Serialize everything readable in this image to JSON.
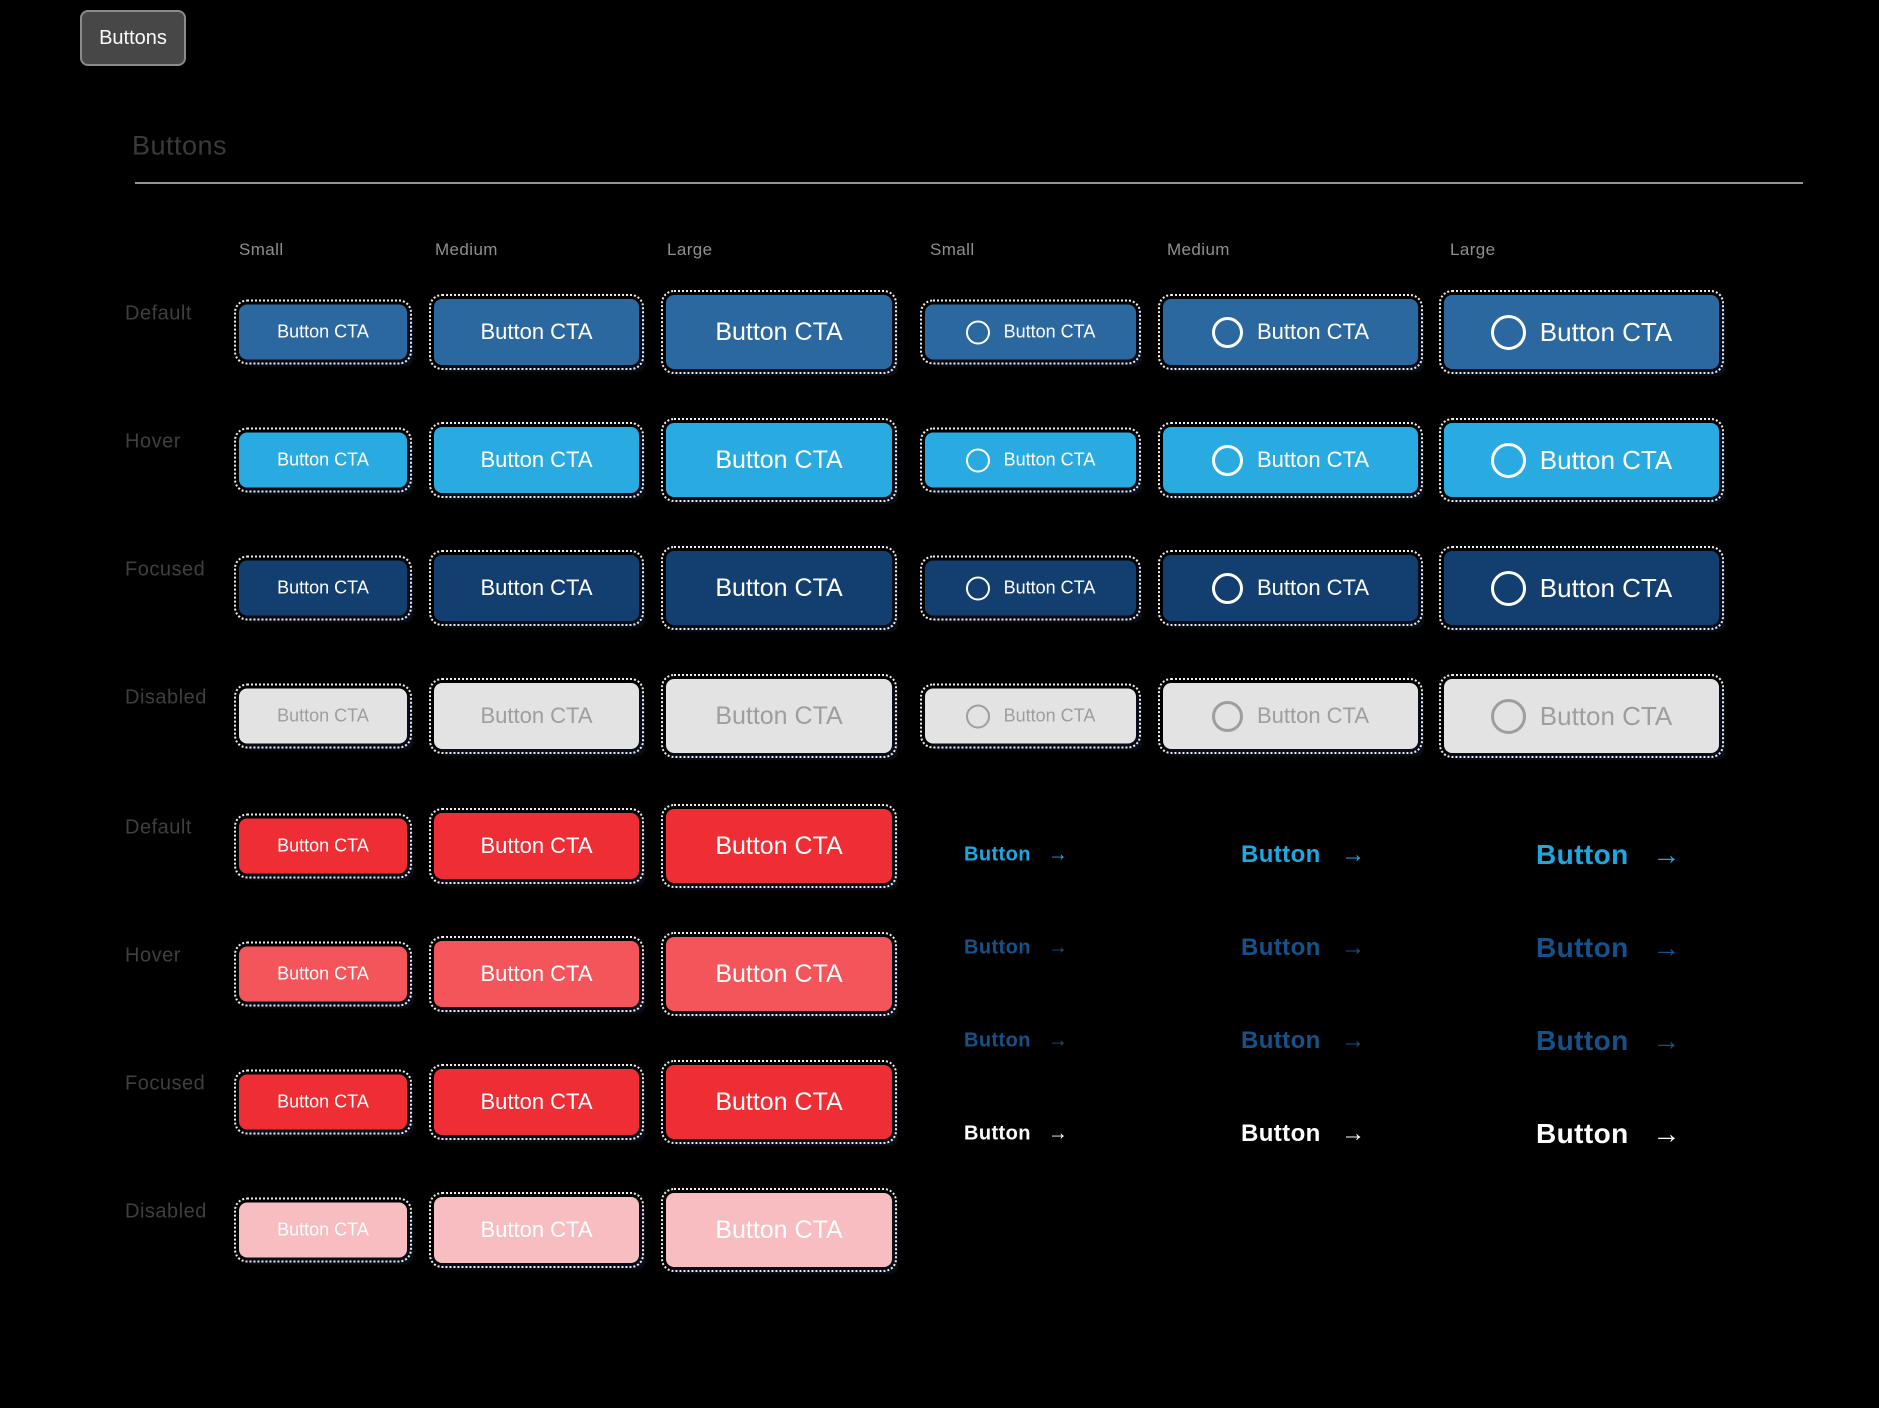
{
  "tab": {
    "label": "Buttons"
  },
  "heading": {
    "title": "Buttons"
  },
  "column_headers": [
    "Small",
    "Medium",
    "Large",
    "Small",
    "Medium",
    "Large"
  ],
  "row_labels": {
    "group1": [
      "Default",
      "Hover",
      "Focused",
      "Disabled"
    ],
    "group2": [
      "Default",
      "Hover",
      "Focused",
      "Disabled"
    ]
  },
  "labels": {
    "button_cta": "Button CTA",
    "link": "Button",
    "arrow": "→"
  },
  "icons": {
    "circle": "circle-outline-icon",
    "arrow": "arrow-right-icon"
  },
  "colors": {
    "background": "#000000",
    "primary_default": "#2C68A0",
    "primary_hover": "#29ABE2",
    "primary_focused": "#123F70",
    "disabled_bg": "#E3E3E3",
    "disabled_text": "#9E9E9E",
    "danger_default": "#EE2D35",
    "danger_hover": "#F4555B",
    "danger_focused": "#EE2D35",
    "danger_disabled_bg": "#F7BDC1",
    "link_default": "#1CA9E2",
    "link_hover": "#15528A",
    "link_focused": "#15528A",
    "link_pressed": "#FFFFFF"
  }
}
